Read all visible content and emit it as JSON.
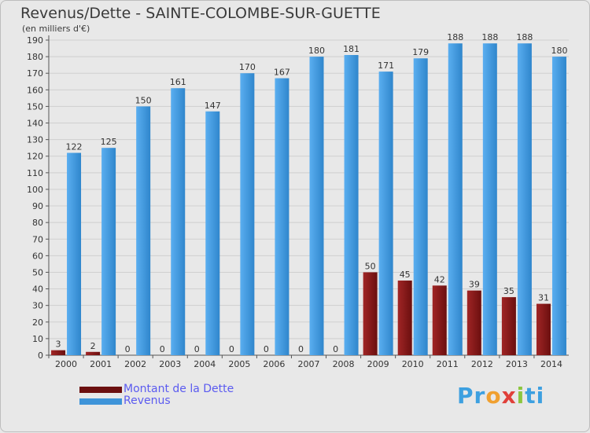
{
  "colors": {
    "debt": "#8b1a1a",
    "revenue": "#3e94d9",
    "grid": "#cfcfcf",
    "axis_text": "#333333",
    "background": "#e8e8e8"
  },
  "chart_data": {
    "type": "bar",
    "title": "Revenus/Dette - SAINTE-COLOMBE-SUR-GUETTE",
    "subtitle": "(en milliers d'€)",
    "categories": [
      "2000",
      "2001",
      "2002",
      "2003",
      "2004",
      "2005",
      "2006",
      "2007",
      "2008",
      "2009",
      "2010",
      "2011",
      "2012",
      "2013",
      "2014"
    ],
    "series": [
      {
        "name": "Montant de la Dette",
        "values": [
          3,
          2,
          0,
          0,
          0,
          0,
          0,
          0,
          0,
          50,
          45,
          42,
          39,
          35,
          31
        ]
      },
      {
        "name": "Revenus",
        "values": [
          122,
          125,
          150,
          161,
          147,
          170,
          167,
          180,
          181,
          171,
          179,
          188,
          188,
          188,
          180
        ]
      }
    ],
    "ylim": [
      0,
      190
    ],
    "yticks": [
      0,
      10,
      20,
      30,
      40,
      50,
      60,
      70,
      80,
      90,
      100,
      110,
      120,
      130,
      140,
      150,
      160,
      170,
      180,
      190
    ],
    "legend_position": "bottom-left",
    "grid": true
  },
  "legend": {
    "debt_label": "Montant de la Dette",
    "revenue_label": "Revenus"
  },
  "logo": {
    "letters": [
      "P",
      "r",
      "o",
      "x",
      "i",
      "ti"
    ]
  }
}
